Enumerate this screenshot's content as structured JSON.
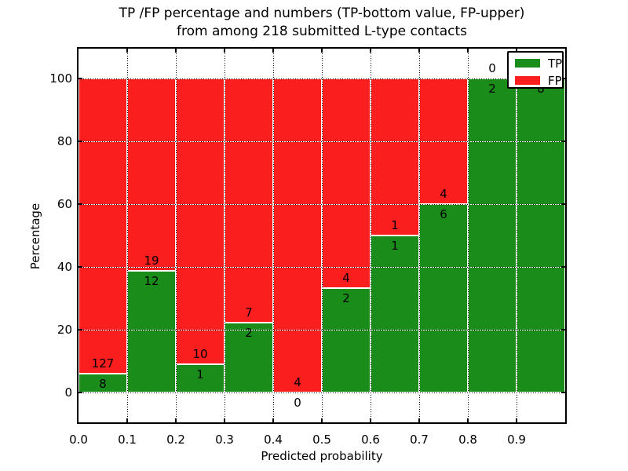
{
  "figure": {
    "title_line1": "TP /FP percentage and numbers (TP-bottom value, FP-upper)",
    "title_line2": "from among 218 submitted L-type contacts"
  },
  "chart_data": {
    "type": "bar",
    "subtype": "stacked-percentage-histogram",
    "title": "TP /FP percentage and numbers (TP-bottom value, FP-upper) from among 218 submitted L-type contacts",
    "xlabel": "Predicted probability",
    "ylabel": "Percentage",
    "x_tick_labels": [
      "0.0",
      "0.1",
      "0.2",
      "0.3",
      "0.4",
      "0.5",
      "0.6",
      "0.7",
      "0.8",
      "0.9"
    ],
    "y_tick_labels": [
      "0",
      "20",
      "40",
      "60",
      "80",
      "100"
    ],
    "y_tick_values": [
      0,
      20,
      40,
      60,
      80,
      100
    ],
    "xlim": [
      0.0,
      1.0
    ],
    "ylim": [
      -10,
      110
    ],
    "grid": true,
    "legend_position": "upper right",
    "series": [
      {
        "name": "TP",
        "color": "#1a8c1a"
      },
      {
        "name": "FP",
        "color": "#fb1e1e"
      }
    ],
    "bins": [
      {
        "x_start": 0.0,
        "x_end": 0.1,
        "tp": 8,
        "fp": 127,
        "tp_pct": 5.9
      },
      {
        "x_start": 0.1,
        "x_end": 0.2,
        "tp": 12,
        "fp": 19,
        "tp_pct": 38.7
      },
      {
        "x_start": 0.2,
        "x_end": 0.3,
        "tp": 1,
        "fp": 10,
        "tp_pct": 9.1
      },
      {
        "x_start": 0.3,
        "x_end": 0.4,
        "tp": 2,
        "fp": 7,
        "tp_pct": 22.2
      },
      {
        "x_start": 0.4,
        "x_end": 0.5,
        "tp": 0,
        "fp": 4,
        "tp_pct": 0.0
      },
      {
        "x_start": 0.5,
        "x_end": 0.6,
        "tp": 2,
        "fp": 4,
        "tp_pct": 33.3
      },
      {
        "x_start": 0.6,
        "x_end": 0.7,
        "tp": 1,
        "fp": 1,
        "tp_pct": 50.0
      },
      {
        "x_start": 0.7,
        "x_end": 0.8,
        "tp": 6,
        "fp": 4,
        "tp_pct": 60.0
      },
      {
        "x_start": 0.8,
        "x_end": 0.9,
        "tp": 2,
        "fp": 0,
        "tp_pct": 100.0
      },
      {
        "x_start": 0.9,
        "x_end": 1.0,
        "tp": 8,
        "fp": 0,
        "tp_pct": 100.0
      }
    ]
  }
}
